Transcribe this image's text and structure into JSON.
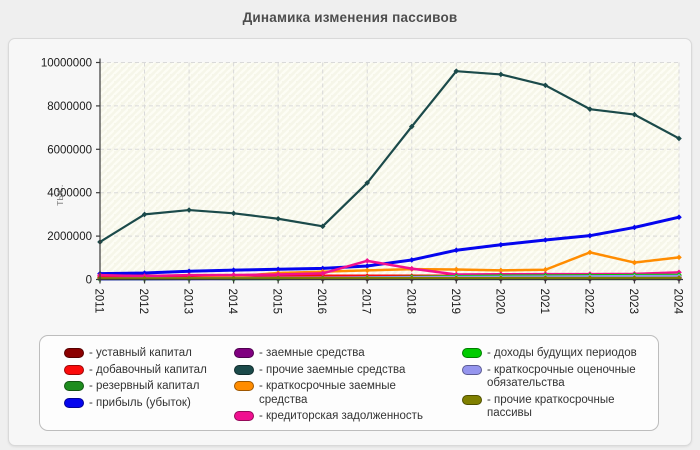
{
  "page": {
    "title": "Динамика изменения пассивов"
  },
  "chart_data": {
    "type": "line",
    "title": "Динамика изменения пассивов",
    "xlabel": "",
    "ylabel": "тыс.",
    "categories": [
      "2011",
      "2012",
      "2013",
      "2014",
      "2015",
      "2016",
      "2017",
      "2018",
      "2019",
      "2020",
      "2021",
      "2022",
      "2023",
      "2024"
    ],
    "ylim": [
      0,
      10000000
    ],
    "yticks": [
      0,
      2000000,
      4000000,
      6000000,
      8000000,
      10000000
    ],
    "grid": "dashed both axes",
    "plot_background": "cream with light diagonal hatch",
    "legend_position": "bottom box, 3 columns",
    "series": [
      {
        "name": "уставный капитал",
        "color": "#8b0000",
        "width": 3,
        "values": [
          100000,
          100000,
          100000,
          100000,
          100000,
          100000,
          100000,
          100000,
          100000,
          100000,
          100000,
          100000,
          100000,
          100000
        ]
      },
      {
        "name": "добавочный капитал",
        "color": "#fb0b0b",
        "width": 3,
        "values": [
          160000,
          160000,
          160000,
          160000,
          160000,
          160000,
          160000,
          160000,
          160000,
          160000,
          160000,
          160000,
          160000,
          160000
        ]
      },
      {
        "name": "резервный капитал",
        "color": "#1e8c1e",
        "width": 2,
        "values": [
          15000,
          15000,
          15000,
          15000,
          15000,
          15000,
          15000,
          15000,
          15000,
          15000,
          15000,
          15000,
          15000,
          15000
        ]
      },
      {
        "name": "прибыль (убыток)",
        "color": "#0505ee",
        "width": 3,
        "values": [
          270000,
          300000,
          380000,
          430000,
          470000,
          510000,
          620000,
          900000,
          1350000,
          1600000,
          1820000,
          2020000,
          2400000,
          2870000
        ]
      },
      {
        "name": "заемные средства",
        "color": "#800080",
        "width": 2,
        "values": [
          30000,
          30000,
          30000,
          30000,
          30000,
          30000,
          30000,
          30000,
          30000,
          30000,
          30000,
          30000,
          30000,
          30000
        ]
      },
      {
        "name": "прочие заемные средства",
        "color": "#1b4a4a",
        "width": 2.2,
        "values": [
          1730000,
          3000000,
          3200000,
          3050000,
          2800000,
          2450000,
          4450000,
          7050000,
          9600000,
          9450000,
          8950000,
          7850000,
          7600000,
          6500000
        ]
      },
      {
        "name": "краткосрочные заемные средства",
        "color": "#ff8c00",
        "width": 2.5,
        "values": [
          30000,
          40000,
          50000,
          140000,
          300000,
          360000,
          420000,
          480000,
          460000,
          420000,
          450000,
          1250000,
          780000,
          1020000
        ]
      },
      {
        "name": "кредиторская задолженность",
        "color": "#f01090",
        "width": 2.5,
        "values": [
          200000,
          160000,
          200000,
          210000,
          230000,
          280000,
          860000,
          500000,
          230000,
          240000,
          250000,
          250000,
          260000,
          330000
        ]
      },
      {
        "name": "доходы будущих периодов",
        "color": "#00cc00",
        "width": 2.5,
        "values": [
          5000,
          8000,
          10000,
          15000,
          30000,
          60000,
          90000,
          120000,
          150000,
          170000,
          180000,
          190000,
          200000,
          210000
        ]
      },
      {
        "name": "краткосрочные оценочные обязательства",
        "color": "#9595ee",
        "width": 3.5,
        "values": [
          20000,
          25000,
          30000,
          40000,
          50000,
          60000,
          70000,
          80000,
          90000,
          100000,
          110000,
          120000,
          130000,
          140000
        ]
      },
      {
        "name": "прочие краткосрочные пассивы",
        "color": "#808000",
        "width": 2.5,
        "values": [
          45000,
          45000,
          50000,
          50000,
          55000,
          55000,
          60000,
          60000,
          60000,
          60000,
          65000,
          65000,
          65000,
          70000
        ]
      }
    ]
  },
  "legend": {
    "prefix": "-",
    "columns": [
      [
        0,
        1,
        2,
        3
      ],
      [
        4,
        5,
        6,
        7
      ],
      [
        8,
        9,
        10
      ]
    ]
  },
  "colors": {
    "page_bg": "#efefef",
    "panel_bg": "#f7f7f7",
    "panel_border": "#d9d9d9",
    "plot_bg": "#f6f6e9",
    "hatch_line": "#fdfdf5",
    "grid": "#d9d9d9",
    "axis": "#3a3a3a",
    "tick_label": "#1a1a1a",
    "title": "#4d4d4d",
    "unit_label": "#8a8a8a"
  }
}
